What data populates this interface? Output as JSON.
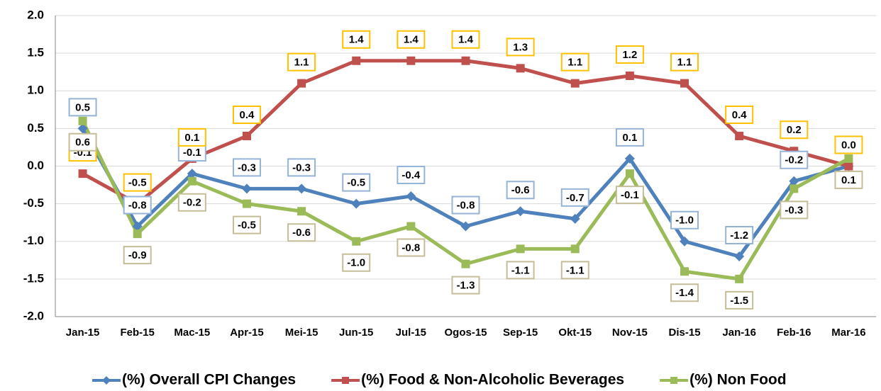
{
  "chart_data": {
    "type": "line",
    "categories": [
      "Jan-15",
      "Feb-15",
      "Mac-15",
      "Apr-15",
      "Mei-15",
      "Jun-15",
      "Jul-15",
      "Ogos-15",
      "Sep-15",
      "Okt-15",
      "Nov-15",
      "Dis-15",
      "Jan-16",
      "Feb-16",
      "Mar-16"
    ],
    "series": [
      {
        "name": "(%) Overall CPI Changes",
        "color": "#4f81bd",
        "label_border": "#95b3d7",
        "marker": "diamond",
        "values": [
          0.5,
          -0.8,
          -0.1,
          -0.3,
          -0.3,
          -0.5,
          -0.4,
          -0.8,
          -0.6,
          -0.7,
          0.1,
          -1.0,
          -1.2,
          -0.2,
          0.0
        ],
        "value_labels": [
          "0.5",
          "-0.8",
          "-0.1",
          "-0.3",
          "-0.3",
          "-0.5",
          "-0.4",
          "-0.8",
          "-0.6",
          "-0.7",
          "0.1",
          "-1.0",
          "-1.2",
          "-0.2",
          null
        ]
      },
      {
        "name": "(%) Food & Non-Alcoholic Beverages",
        "color": "#c0504d",
        "label_border": "#ffc000",
        "marker": "square",
        "values": [
          -0.1,
          -0.5,
          0.1,
          0.4,
          1.1,
          1.4,
          1.4,
          1.4,
          1.3,
          1.1,
          1.2,
          1.1,
          0.4,
          0.2,
          0.0
        ],
        "value_labels": [
          "-0.1",
          "-0.5",
          "0.1",
          "0.4",
          "1.1",
          "1.4",
          "1.4",
          "1.4",
          "1.3",
          "1.1",
          "1.2",
          "1.1",
          "0.4",
          "0.2",
          "0.0"
        ]
      },
      {
        "name": "(%) Non Food",
        "color": "#9bbb59",
        "label_border": "#c4bd97",
        "marker": "square",
        "values": [
          0.6,
          -0.9,
          -0.2,
          -0.5,
          -0.6,
          -1.0,
          -0.8,
          -1.3,
          -1.1,
          -1.1,
          -0.1,
          -1.4,
          -1.5,
          -0.3,
          0.1
        ],
        "value_labels": [
          "0.6",
          "-0.9",
          "-0.2",
          "-0.5",
          "-0.6",
          "-1.0",
          "-0.8",
          "-1.3",
          "-1.1",
          "-1.1",
          "-0.1",
          "-1.4",
          "-1.5",
          "-0.3",
          "0.1"
        ]
      }
    ],
    "ylim": [
      -2.0,
      2.0
    ],
    "yticks": [
      {
        "value": 2.0,
        "label": "2.0"
      },
      1.5,
      {
        "value": 1.0,
        "label": "1.0"
      },
      0.5,
      {
        "value": 0.0,
        "label": "0.0"
      },
      -0.5,
      {
        "value": -1.0,
        "label": "-1.0"
      },
      -1.5,
      {
        "value": -2.0,
        "label": "-2.0"
      }
    ],
    "grid": true,
    "legend": "bottom"
  }
}
